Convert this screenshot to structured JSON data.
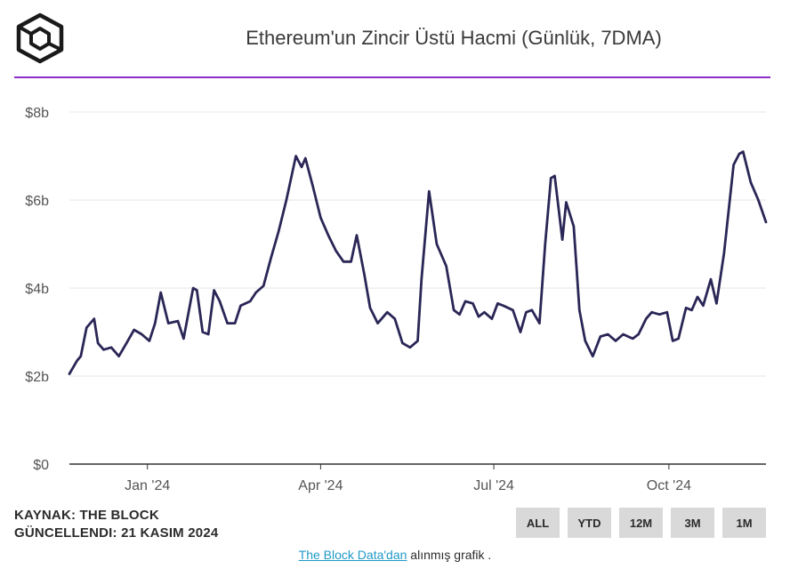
{
  "header": {
    "title": "Ethereum'un Zincir Üstü Hacmi (Günlük, 7DMA)",
    "logo": "the-block-cube-logo"
  },
  "chart_data": {
    "type": "line",
    "title": "Ethereum'un Zincir Üstü Hacmi (Günlük, 7DMA)",
    "xlabel": "",
    "ylabel": "",
    "ylim": [
      0,
      8
    ],
    "yticks": [
      "$0",
      "$2b",
      "$4b",
      "$6b",
      "$8b"
    ],
    "xticks": [
      {
        "label": "Jan '24",
        "date": "2024-01-01"
      },
      {
        "label": "Apr '24",
        "date": "2024-04-01"
      },
      {
        "label": "Jul '24",
        "date": "2024-07-01"
      },
      {
        "label": "Oct '24",
        "date": "2024-10-01"
      }
    ],
    "xlim": [
      "2023-11-21",
      "2024-11-21"
    ],
    "grid": true,
    "line_color": "#2a2656",
    "series": [
      {
        "values": [
          [
            "2023-11-21",
            2.05
          ],
          [
            "2023-11-25",
            2.35
          ],
          [
            "2023-11-27",
            2.45
          ],
          [
            "2023-11-30",
            3.1
          ],
          [
            "2023-12-04",
            3.3
          ],
          [
            "2023-12-06",
            2.75
          ],
          [
            "2023-12-09",
            2.6
          ],
          [
            "2023-12-13",
            2.65
          ],
          [
            "2023-12-17",
            2.45
          ],
          [
            "2023-12-21",
            2.75
          ],
          [
            "2023-12-25",
            3.05
          ],
          [
            "2023-12-29",
            2.95
          ],
          [
            "2024-01-02",
            2.8
          ],
          [
            "2024-01-05",
            3.2
          ],
          [
            "2024-01-08",
            3.9
          ],
          [
            "2024-01-12",
            3.2
          ],
          [
            "2024-01-17",
            3.25
          ],
          [
            "2024-01-20",
            2.85
          ],
          [
            "2024-01-25",
            4.0
          ],
          [
            "2024-01-27",
            3.95
          ],
          [
            "2024-01-30",
            3.0
          ],
          [
            "2024-02-02",
            2.95
          ],
          [
            "2024-02-05",
            3.95
          ],
          [
            "2024-02-08",
            3.7
          ],
          [
            "2024-02-12",
            3.2
          ],
          [
            "2024-02-16",
            3.2
          ],
          [
            "2024-02-19",
            3.6
          ],
          [
            "2024-02-24",
            3.7
          ],
          [
            "2024-02-27",
            3.9
          ],
          [
            "2024-03-02",
            4.05
          ],
          [
            "2024-03-06",
            4.7
          ],
          [
            "2024-03-10",
            5.3
          ],
          [
            "2024-03-14",
            6.0
          ],
          [
            "2024-03-19",
            7.0
          ],
          [
            "2024-03-22",
            6.75
          ],
          [
            "2024-03-24",
            6.95
          ],
          [
            "2024-03-28",
            6.3
          ],
          [
            "2024-04-01",
            5.6
          ],
          [
            "2024-04-05",
            5.2
          ],
          [
            "2024-04-09",
            4.85
          ],
          [
            "2024-04-13",
            4.6
          ],
          [
            "2024-04-17",
            4.6
          ],
          [
            "2024-04-20",
            5.2
          ],
          [
            "2024-04-24",
            4.3
          ],
          [
            "2024-04-27",
            3.55
          ],
          [
            "2024-05-01",
            3.2
          ],
          [
            "2024-05-06",
            3.45
          ],
          [
            "2024-05-10",
            3.3
          ],
          [
            "2024-05-14",
            2.75
          ],
          [
            "2024-05-18",
            2.65
          ],
          [
            "2024-05-22",
            2.8
          ],
          [
            "2024-05-24",
            4.2
          ],
          [
            "2024-05-28",
            6.2
          ],
          [
            "2024-06-01",
            5.0
          ],
          [
            "2024-06-06",
            4.5
          ],
          [
            "2024-06-10",
            3.5
          ],
          [
            "2024-06-13",
            3.4
          ],
          [
            "2024-06-16",
            3.7
          ],
          [
            "2024-06-20",
            3.65
          ],
          [
            "2024-06-23",
            3.35
          ],
          [
            "2024-06-26",
            3.45
          ],
          [
            "2024-06-30",
            3.3
          ],
          [
            "2024-07-03",
            3.65
          ],
          [
            "2024-07-06",
            3.6
          ],
          [
            "2024-07-11",
            3.5
          ],
          [
            "2024-07-15",
            3.0
          ],
          [
            "2024-07-18",
            3.45
          ],
          [
            "2024-07-21",
            3.5
          ],
          [
            "2024-07-25",
            3.2
          ],
          [
            "2024-07-28",
            5.0
          ],
          [
            "2024-07-31",
            6.5
          ],
          [
            "2024-08-02",
            6.55
          ],
          [
            "2024-08-06",
            5.1
          ],
          [
            "2024-08-08",
            5.95
          ],
          [
            "2024-08-12",
            5.4
          ],
          [
            "2024-08-15",
            3.5
          ],
          [
            "2024-08-18",
            2.8
          ],
          [
            "2024-08-22",
            2.45
          ],
          [
            "2024-08-26",
            2.9
          ],
          [
            "2024-08-30",
            2.95
          ],
          [
            "2024-09-03",
            2.8
          ],
          [
            "2024-09-07",
            2.95
          ],
          [
            "2024-09-12",
            2.85
          ],
          [
            "2024-09-15",
            2.95
          ],
          [
            "2024-09-19",
            3.3
          ],
          [
            "2024-09-22",
            3.45
          ],
          [
            "2024-09-26",
            3.4
          ],
          [
            "2024-09-30",
            3.45
          ],
          [
            "2024-10-03",
            2.8
          ],
          [
            "2024-10-06",
            2.85
          ],
          [
            "2024-10-10",
            3.55
          ],
          [
            "2024-10-13",
            3.5
          ],
          [
            "2024-10-16",
            3.8
          ],
          [
            "2024-10-19",
            3.6
          ],
          [
            "2024-10-23",
            4.2
          ],
          [
            "2024-10-26",
            3.65
          ],
          [
            "2024-10-30",
            4.8
          ],
          [
            "2024-11-04",
            6.8
          ],
          [
            "2024-11-07",
            7.05
          ],
          [
            "2024-11-09",
            7.1
          ],
          [
            "2024-11-13",
            6.4
          ],
          [
            "2024-11-17",
            6.0
          ],
          [
            "2024-11-21",
            5.5
          ]
        ]
      }
    ]
  },
  "footer": {
    "source_line1": "KAYNAK: THE BLOCK",
    "source_line2": "GÜNCELLENDI: 21 KASIM 2024",
    "buttons": [
      "ALL",
      "YTD",
      "12M",
      "3M",
      "1M"
    ],
    "credit_link": "The Block Data'dan",
    "credit_rest": " alınmış grafik ."
  }
}
